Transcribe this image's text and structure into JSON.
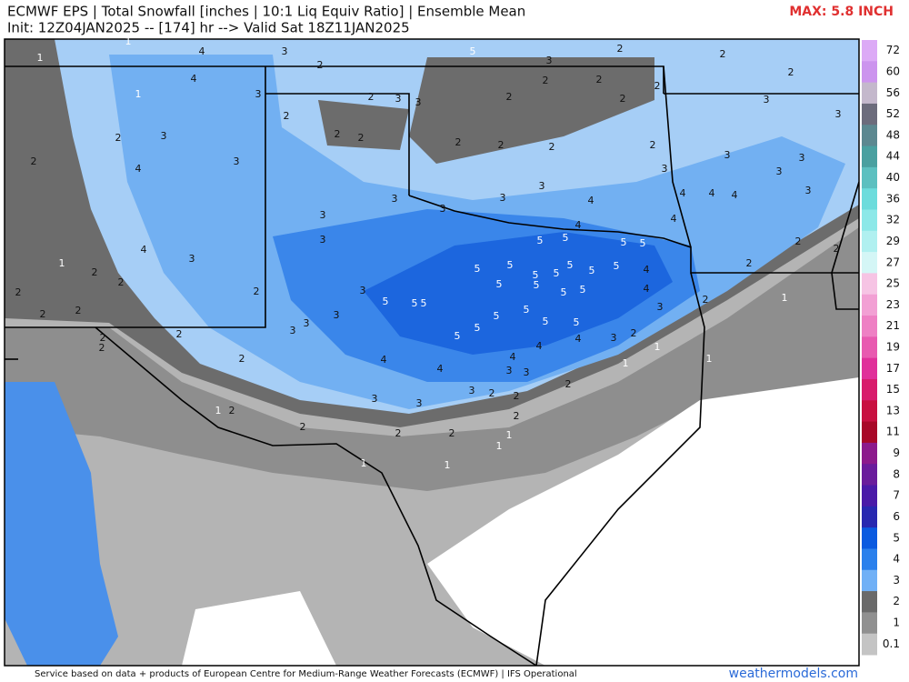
{
  "header": {
    "title": "ECMWF EPS | Total Snowfall [inches | 10:1 Liq Equiv Ratio] | Ensemble Mean",
    "subtitle": "Init: 12Z04JAN2025 -- [174] hr --> Valid Sat 18Z11JAN2025",
    "max": "MAX: 5.8 INCH"
  },
  "legend": [
    {
      "value": 72,
      "color": "#dcaaf6"
    },
    {
      "value": 60,
      "color": "#cc94ee"
    },
    {
      "value": 56,
      "color": "#c4b8cc"
    },
    {
      "value": 52,
      "color": "#6c6c7c"
    },
    {
      "value": 48,
      "color": "#5c8890"
    },
    {
      "value": 44,
      "color": "#4aa0a0"
    },
    {
      "value": 40,
      "color": "#5cc0c0"
    },
    {
      "value": 36,
      "color": "#6cdcdc"
    },
    {
      "value": 32,
      "color": "#8ce8e8"
    },
    {
      "value": 29,
      "color": "#b0f0f0"
    },
    {
      "value": 27,
      "color": "#d4f6f6"
    },
    {
      "value": 25,
      "color": "#f6c4e4"
    },
    {
      "value": 23,
      "color": "#f2a0d4"
    },
    {
      "value": 21,
      "color": "#ee80c4"
    },
    {
      "value": 19,
      "color": "#e85ab0"
    },
    {
      "value": 17,
      "color": "#e0309a"
    },
    {
      "value": 15,
      "color": "#d81c6c"
    },
    {
      "value": 13,
      "color": "#c81040"
    },
    {
      "value": 11,
      "color": "#a80828"
    },
    {
      "value": 9,
      "color": "#8c1a8c"
    },
    {
      "value": 8,
      "color": "#6a1c9c"
    },
    {
      "value": 7,
      "color": "#4a1aa8"
    },
    {
      "value": 6,
      "color": "#2828b0"
    },
    {
      "value": 5,
      "color": "#0a5ae0"
    },
    {
      "value": 4,
      "color": "#2a80ec"
    },
    {
      "value": 3,
      "color": "#70b0f6"
    },
    {
      "value": 2,
      "color": "#6a6a6a"
    },
    {
      "value": 1,
      "color": "#909090"
    },
    {
      "value": 0.1,
      "color": "#c4c4c4"
    }
  ],
  "map_labels": [
    1,
    1,
    4,
    3,
    2,
    4,
    1,
    3,
    2,
    2,
    3,
    3,
    5,
    3,
    2,
    2,
    2,
    2,
    2,
    2,
    2,
    2,
    3,
    3,
    3,
    2,
    4,
    3,
    2,
    2,
    2,
    2,
    2,
    2,
    3,
    3,
    3,
    3,
    4,
    4,
    4,
    3,
    3,
    3,
    3,
    3,
    4,
    4,
    4,
    5,
    5,
    5,
    5,
    3,
    3,
    4,
    3,
    1,
    2,
    2,
    5,
    5,
    5,
    5,
    5,
    5,
    5,
    4,
    5,
    5,
    5,
    5,
    4,
    3,
    2,
    2,
    2,
    2,
    1,
    5,
    5,
    5,
    5,
    5,
    5,
    3,
    3,
    3,
    3,
    5,
    5,
    5,
    3,
    2,
    1,
    4,
    4,
    4,
    3,
    3,
    4,
    4,
    3,
    3,
    3,
    2,
    2,
    2,
    1,
    1,
    1,
    2,
    2,
    2,
    2,
    2,
    1,
    1,
    1,
    1,
    2,
    2,
    2,
    2,
    2,
    2,
    2,
    2,
    2
  ],
  "footer": {
    "credit": "Service based on data + products of European Centre for Medium-Range Weather Forecasts (ECMWF) | IFS Operational",
    "site": "weathermodels.com"
  }
}
